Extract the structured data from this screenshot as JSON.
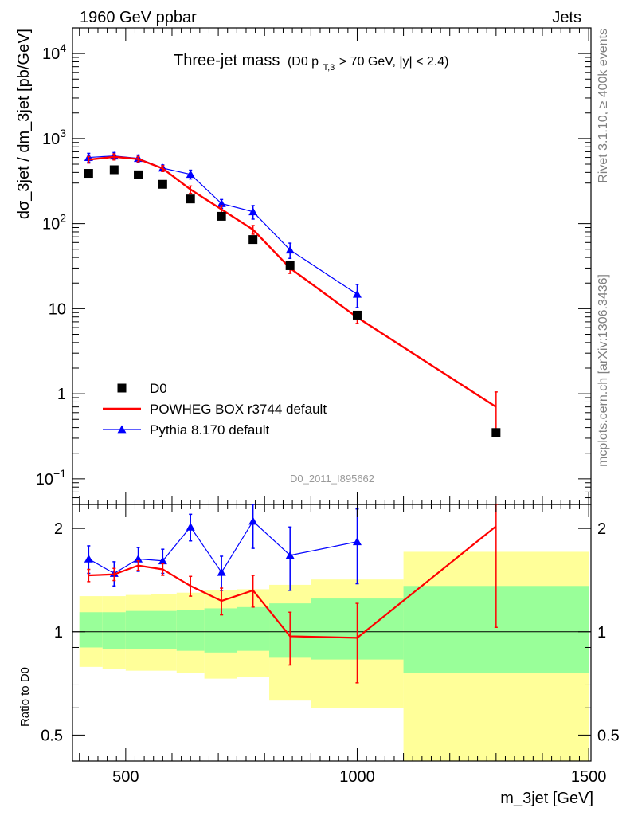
{
  "header": {
    "left": "1960 GeV ppbar",
    "right": "Jets"
  },
  "side_labels": {
    "top": "Rivet 3.1.10, ≥ 400k events",
    "bottom": "mcplots.cern.ch [arXiv:1306.3436]"
  },
  "chart_data": [
    {
      "type": "scatter",
      "title": "Three-jet mass",
      "title_parts": {
        "prefix": "(D0 p",
        "sub": "T,3",
        "suffix": " > 70 GeV, |y| < 2.4)"
      },
      "watermark": "D0_2011_I895662",
      "ylabel": "dσ_3jet / dm_3jet [pb/GeV]",
      "yscale": "log",
      "xlim": [
        385,
        1505
      ],
      "ylim": [
        0.05,
        20000
      ],
      "y_ticks": [
        {
          "v": 0.1,
          "base": "10",
          "exp": "−1"
        },
        {
          "v": 1,
          "base": "1",
          "exp": ""
        },
        {
          "v": 10,
          "base": "10",
          "exp": ""
        },
        {
          "v": 100,
          "base": "10",
          "exp": "2"
        },
        {
          "v": 1000,
          "base": "10",
          "exp": "3"
        },
        {
          "v": 10000,
          "base": "10",
          "exp": "4"
        }
      ],
      "legend": [
        {
          "label": "D0",
          "marker": "square",
          "color": "#000000"
        },
        {
          "label": "POWHEG BOX r3744 default",
          "marker": "line",
          "color": "#ff0000"
        },
        {
          "label": "Pythia 8.170 default",
          "marker": "triangle",
          "color": "#0000ff"
        }
      ],
      "legend_position": "bottom-left",
      "series": [
        {
          "name": "D0",
          "color": "#000000",
          "x": [
            420,
            475,
            527,
            580,
            640,
            707,
            775,
            855,
            1000,
            1300
          ],
          "y": [
            390,
            430,
            375,
            290,
            195,
            122,
            65,
            32,
            8.4,
            0.35
          ],
          "err": [
            0,
            0,
            0,
            0,
            0,
            0,
            0,
            0,
            0,
            0
          ]
        },
        {
          "name": "POWHEG BOX r3744 default",
          "color": "#ff0000",
          "x": [
            420,
            475,
            527,
            580,
            640,
            707,
            775,
            855,
            1000,
            1300
          ],
          "y": [
            565,
            610,
            575,
            445,
            252,
            147,
            85,
            30,
            7.9,
            0.7
          ],
          "err": [
            50,
            50,
            40,
            35,
            25,
            15,
            10,
            4,
            1.2,
            0.35
          ]
        },
        {
          "name": "Pythia 8.170 default",
          "color": "#0000ff",
          "x": [
            420,
            475,
            527,
            580,
            640,
            707,
            775,
            855,
            1000
          ],
          "y": [
            600,
            625,
            585,
            450,
            380,
            172,
            138,
            49,
            14.8
          ],
          "err": [
            70,
            60,
            55,
            40,
            45,
            20,
            25,
            10,
            4.5
          ]
        }
      ]
    },
    {
      "type": "scatter",
      "ylabel": "Ratio to D0",
      "xlabel": "m_3jet [GeV]",
      "yscale": "log",
      "xlim": [
        385,
        1505
      ],
      "ylim": [
        0.42,
        2.35
      ],
      "y_ticks": [
        0.5,
        1,
        2
      ],
      "y_tick_labels": [
        "0.5",
        "1",
        "2"
      ],
      "x_ticks": [
        500,
        1000,
        1500
      ],
      "x_tick_labels": [
        "500",
        "1000",
        "1500"
      ],
      "reference_line": 1,
      "bands": {
        "yellow": "#ffff99",
        "green": "#99ff99",
        "bins": [
          {
            "x0": 400,
            "x1": 450,
            "y_lo": 0.79,
            "y_hi": 1.27,
            "g_lo": 0.9,
            "g_hi": 1.14
          },
          {
            "x0": 450,
            "x1": 500,
            "y_lo": 0.78,
            "y_hi": 1.27,
            "g_lo": 0.89,
            "g_hi": 1.14
          },
          {
            "x0": 500,
            "x1": 555,
            "y_lo": 0.77,
            "y_hi": 1.28,
            "g_lo": 0.89,
            "g_hi": 1.15
          },
          {
            "x0": 555,
            "x1": 610,
            "y_lo": 0.77,
            "y_hi": 1.29,
            "g_lo": 0.89,
            "g_hi": 1.15
          },
          {
            "x0": 610,
            "x1": 670,
            "y_lo": 0.76,
            "y_hi": 1.3,
            "g_lo": 0.88,
            "g_hi": 1.16
          },
          {
            "x0": 670,
            "x1": 740,
            "y_lo": 0.73,
            "y_hi": 1.32,
            "g_lo": 0.87,
            "g_hi": 1.17
          },
          {
            "x0": 740,
            "x1": 810,
            "y_lo": 0.74,
            "y_hi": 1.33,
            "g_lo": 0.88,
            "g_hi": 1.18
          },
          {
            "x0": 810,
            "x1": 900,
            "y_lo": 0.63,
            "y_hi": 1.37,
            "g_lo": 0.84,
            "g_hi": 1.21
          },
          {
            "x0": 900,
            "x1": 1100,
            "y_lo": 0.6,
            "y_hi": 1.42,
            "g_lo": 0.83,
            "g_hi": 1.25
          },
          {
            "x0": 1100,
            "x1": 1500,
            "y_lo": 0.42,
            "y_hi": 1.71,
            "g_lo": 0.76,
            "g_hi": 1.36
          }
        ]
      },
      "series": [
        {
          "name": "POWHEG BOX r3744 default",
          "color": "#ff0000",
          "x": [
            420,
            475,
            527,
            580,
            640,
            707,
            775,
            855,
            1000,
            1300
          ],
          "y": [
            1.46,
            1.47,
            1.56,
            1.52,
            1.36,
            1.23,
            1.32,
            0.97,
            0.96,
            2.03
          ],
          "err": [
            0.06,
            0.06,
            0.05,
            0.06,
            0.09,
            0.11,
            0.14,
            0.17,
            0.25,
            1.0
          ]
        },
        {
          "name": "Pythia 8.170 default",
          "color": "#0000ff",
          "x": [
            420,
            475,
            527,
            580,
            640,
            707,
            775,
            855,
            1000
          ],
          "y": [
            1.63,
            1.48,
            1.63,
            1.61,
            2.02,
            1.49,
            2.1,
            1.67,
            1.83
          ],
          "err": [
            0.15,
            0.12,
            0.13,
            0.13,
            0.18,
            0.17,
            0.35,
            0.35,
            0.45
          ]
        }
      ]
    }
  ]
}
